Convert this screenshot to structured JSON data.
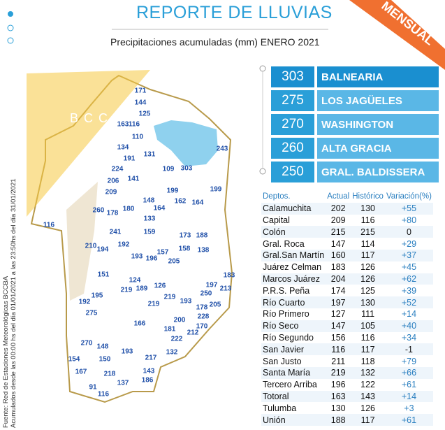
{
  "header": {
    "title": "REPORTE DE LLUVIAS",
    "subtitle": "Precipitaciones acumuladas (mm) ENERO 2021",
    "badge": "MENSUAL",
    "logo": "BCCBA"
  },
  "source": "Fuente: Red de Estaciones Meteorológicas BCCBA",
  "period": "Acumulados desde las 00:00 hs del día 01/01/2021 a las 23:50hs del día 31/01/2021",
  "ranking": [
    {
      "value": 303,
      "name": "BALNEARIA"
    },
    {
      "value": 275,
      "name": "LOS JAGÜELES"
    },
    {
      "value": 270,
      "name": "WASHINGTON"
    },
    {
      "value": 260,
      "name": "ALTA GRACIA"
    },
    {
      "value": 250,
      "name": "GRAL. BALDISSERA"
    }
  ],
  "table": {
    "columns": [
      "Deptos.",
      "Actual",
      "Histórico",
      "Variación(%)"
    ],
    "rows": [
      [
        "Calamuchita",
        202,
        130,
        "+55"
      ],
      [
        "Capital",
        209,
        116,
        "+80"
      ],
      [
        "Colón",
        215,
        215,
        "0"
      ],
      [
        "Gral. Roca",
        147,
        114,
        "+29"
      ],
      [
        "Gral.San Martín",
        160,
        117,
        "+37"
      ],
      [
        "Juárez Celman",
        183,
        126,
        "+45"
      ],
      [
        "Marcos Juárez",
        204,
        126,
        "+62"
      ],
      [
        "P.R.S. Peña",
        174,
        125,
        "+39"
      ],
      [
        "Río Cuarto",
        197,
        130,
        "+52"
      ],
      [
        "Río Primero",
        127,
        111,
        "+14"
      ],
      [
        "Río Seco",
        147,
        105,
        "+40"
      ],
      [
        "Río Segundo",
        156,
        116,
        "+34"
      ],
      [
        "San Javier",
        116,
        117,
        "-1"
      ],
      [
        "San Justo",
        211,
        118,
        "+79"
      ],
      [
        "Santa María",
        219,
        132,
        "+66"
      ],
      [
        "Tercero Arriba",
        196,
        122,
        "+61"
      ],
      [
        "Totoral",
        163,
        143,
        "+14"
      ],
      [
        "Tulumba",
        130,
        126,
        "+3"
      ],
      [
        "Unión",
        188,
        117,
        "+61"
      ]
    ]
  },
  "map": {
    "stations": [
      171,
      144,
      125,
      163,
      116,
      110,
      134,
      131,
      191,
      224,
      109,
      303,
      243,
      206,
      141,
      209,
      199,
      199,
      148,
      162,
      164,
      164,
      260,
      178,
      180,
      133,
      116,
      241,
      159,
      173,
      188,
      210,
      194,
      192,
      157,
      158,
      138,
      193,
      196,
      205,
      151,
      183,
      124,
      126,
      197,
      213,
      219,
      189,
      250,
      195,
      219,
      193,
      192,
      219,
      205,
      178,
      275,
      228,
      200,
      166,
      170,
      181,
      212,
      222,
      270,
      148,
      193,
      132,
      217,
      154,
      150,
      143,
      167,
      218,
      186,
      137,
      91,
      116
    ]
  }
}
